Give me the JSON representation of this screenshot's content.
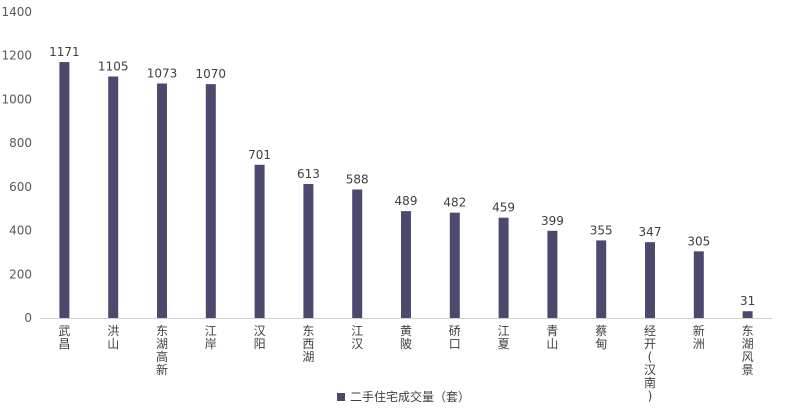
{
  "chart_data": {
    "type": "bar",
    "categories": [
      "武昌",
      "洪山",
      "东湖高新",
      "江岸",
      "汉阳",
      "东西湖",
      "江汉",
      "黄陂",
      "硚口",
      "江夏",
      "青山",
      "蔡甸",
      "经开(汉南)",
      "新洲",
      "东湖风景"
    ],
    "series": [
      {
        "name": "二手住宅成交量（套）",
        "values": [
          1171,
          1105,
          1073,
          1070,
          701,
          613,
          588,
          489,
          482,
          459,
          399,
          355,
          347,
          305,
          31
        ],
        "color": "#4b4a6e"
      }
    ],
    "ylim": [
      0,
      1400
    ],
    "yticks": [
      0,
      200,
      400,
      600,
      800,
      1000,
      1200,
      1400
    ],
    "grid": false,
    "legend": "bottom-center",
    "data_labels": true
  }
}
